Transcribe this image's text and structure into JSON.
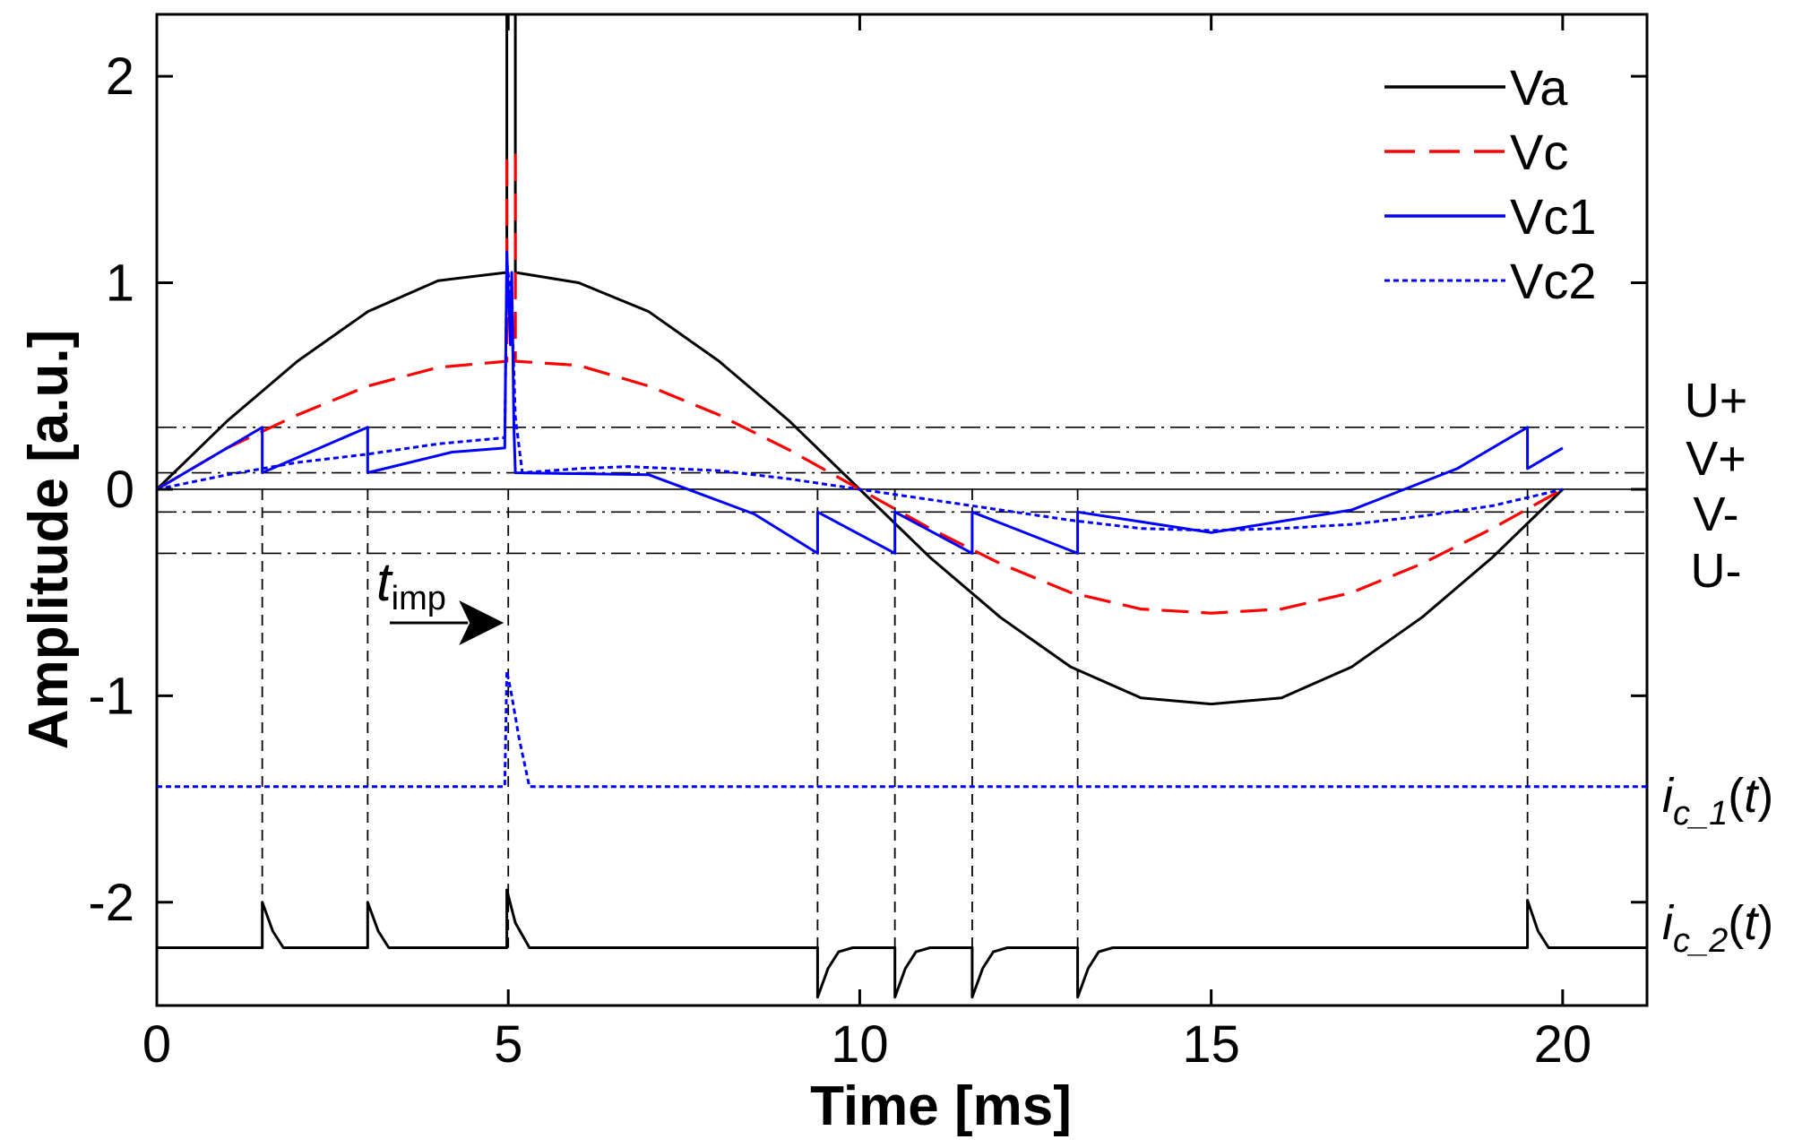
{
  "chart_data": {
    "type": "line",
    "title": "",
    "xlabel": "Time [ms]",
    "ylabel": "Amplitude [a.u.]",
    "xlim": [
      0,
      21.2
    ],
    "ylim": [
      -2.5,
      2.3
    ],
    "xticks": [
      0,
      5,
      10,
      15,
      20
    ],
    "xtick_labels": [
      "0",
      "5",
      "10",
      "15",
      "20"
    ],
    "yticks": [
      -2,
      -1,
      0,
      1,
      2
    ],
    "ytick_labels": [
      "-2",
      "-1",
      "0",
      "1",
      "2"
    ],
    "grid": false,
    "legend_position": "top-right",
    "thresholds": [
      {
        "name": "U+",
        "value": 0.3,
        "style": "dashdot"
      },
      {
        "name": "V+",
        "value": 0.08,
        "style": "dashdot"
      },
      {
        "name": "V-",
        "value": -0.11,
        "style": "dashdot"
      },
      {
        "name": "U-",
        "value": -0.31,
        "style": "dashdot"
      }
    ],
    "current_labels": {
      "ic1": {
        "prefix": "i",
        "sub": "c_1",
        "suffix": "(",
        "t": "t",
        "close": ")",
        "baseline": -1.44
      },
      "ic2": {
        "prefix": "i",
        "sub": "c_2",
        "suffix": "(",
        "t": "t",
        "close": ")",
        "baseline": -2.22
      }
    },
    "annotation": {
      "text": "t",
      "sub": "imp",
      "x": 5.0
    },
    "event_times": [
      1.5,
      3.0,
      5.0,
      9.4,
      10.5,
      11.6,
      13.1,
      19.5
    ],
    "series": [
      {
        "name": "Va",
        "color": "#000000",
        "style": "solid",
        "points": [
          [
            0,
            0
          ],
          [
            1,
            0.33
          ],
          [
            2,
            0.62
          ],
          [
            3,
            0.86
          ],
          [
            4,
            1.01
          ],
          [
            4.98,
            1.05
          ],
          [
            4.98,
            2.3
          ],
          [
            5.1,
            2.3
          ],
          [
            5.1,
            1.05
          ],
          [
            6,
            1.0
          ],
          [
            7,
            0.86
          ],
          [
            8,
            0.62
          ],
          [
            9,
            0.33
          ],
          [
            10,
            0
          ],
          [
            11,
            -0.33
          ],
          [
            12,
            -0.62
          ],
          [
            13,
            -0.86
          ],
          [
            14,
            -1.01
          ],
          [
            15,
            -1.04
          ],
          [
            16,
            -1.01
          ],
          [
            17,
            -0.86
          ],
          [
            18,
            -0.62
          ],
          [
            19,
            -0.33
          ],
          [
            20,
            0
          ]
        ]
      },
      {
        "name": "Vc",
        "color": "#ff0000",
        "style": "dashed",
        "points": [
          [
            0,
            0
          ],
          [
            1,
            0.2
          ],
          [
            2,
            0.36
          ],
          [
            3,
            0.5
          ],
          [
            4,
            0.59
          ],
          [
            4.98,
            0.62
          ],
          [
            4.98,
            1.62
          ],
          [
            5.1,
            1.62
          ],
          [
            5.1,
            0.62
          ],
          [
            6,
            0.6
          ],
          [
            7,
            0.5
          ],
          [
            8,
            0.36
          ],
          [
            9,
            0.19
          ],
          [
            10,
            0
          ],
          [
            11,
            -0.19
          ],
          [
            12,
            -0.36
          ],
          [
            13,
            -0.5
          ],
          [
            14,
            -0.58
          ],
          [
            15,
            -0.6
          ],
          [
            16,
            -0.58
          ],
          [
            17,
            -0.5
          ],
          [
            18,
            -0.36
          ],
          [
            19,
            -0.19
          ],
          [
            20,
            0
          ]
        ]
      },
      {
        "name": "Vc1",
        "color": "#0000ff",
        "style": "solid",
        "points": [
          [
            0,
            0
          ],
          [
            1.5,
            0.3
          ],
          [
            1.5,
            0.08
          ],
          [
            3.0,
            0.3
          ],
          [
            3.0,
            0.08
          ],
          [
            4.2,
            0.18
          ],
          [
            4.95,
            0.2
          ],
          [
            4.98,
            1.15
          ],
          [
            5.03,
            0.7
          ],
          [
            5.05,
            1.05
          ],
          [
            5.08,
            0.3
          ],
          [
            5.1,
            0.08
          ],
          [
            7.0,
            0.07
          ],
          [
            8.5,
            -0.12
          ],
          [
            9.4,
            -0.31
          ],
          [
            9.4,
            -0.11
          ],
          [
            10.5,
            -0.31
          ],
          [
            10.5,
            -0.11
          ],
          [
            11.6,
            -0.31
          ],
          [
            11.6,
            -0.11
          ],
          [
            13.1,
            -0.31
          ],
          [
            13.1,
            -0.11
          ],
          [
            15.0,
            -0.21
          ],
          [
            17.0,
            -0.1
          ],
          [
            18.5,
            0.1
          ],
          [
            19.5,
            0.3
          ],
          [
            19.5,
            0.1
          ],
          [
            20.0,
            0.2
          ]
        ]
      },
      {
        "name": "Vc2",
        "color": "#0000ff",
        "style": "dotted",
        "points": [
          [
            0,
            0
          ],
          [
            1,
            0.07
          ],
          [
            2,
            0.13
          ],
          [
            3,
            0.17
          ],
          [
            4,
            0.22
          ],
          [
            4.95,
            0.25
          ],
          [
            4.98,
            1.1
          ],
          [
            5.05,
            0.9
          ],
          [
            5.1,
            0.35
          ],
          [
            5.2,
            0.08
          ],
          [
            6,
            0.1
          ],
          [
            6.7,
            0.11
          ],
          [
            8,
            0.09
          ],
          [
            9,
            0.05
          ],
          [
            10,
            0
          ],
          [
            11,
            -0.05
          ],
          [
            12,
            -0.1
          ],
          [
            13,
            -0.15
          ],
          [
            14,
            -0.19
          ],
          [
            15,
            -0.2
          ],
          [
            16,
            -0.19
          ],
          [
            17,
            -0.17
          ],
          [
            18,
            -0.13
          ],
          [
            19,
            -0.08
          ],
          [
            20,
            0
          ]
        ]
      },
      {
        "name": "ic1",
        "color": "#0000ff",
        "style": "dotted",
        "in_legend": false,
        "points": [
          [
            0,
            -1.44
          ],
          [
            4.95,
            -1.44
          ],
          [
            4.98,
            -0.88
          ],
          [
            5.05,
            -1.0
          ],
          [
            5.15,
            -1.2
          ],
          [
            5.3,
            -1.44
          ],
          [
            21.2,
            -1.44
          ]
        ]
      },
      {
        "name": "ic2",
        "color": "#000000",
        "style": "solid",
        "in_legend": false,
        "points": [
          [
            0,
            -2.22
          ],
          [
            1.5,
            -2.22
          ],
          [
            1.5,
            -2.0
          ],
          [
            1.65,
            -2.14
          ],
          [
            1.8,
            -2.22
          ],
          [
            3.0,
            -2.22
          ],
          [
            3.0,
            -2.0
          ],
          [
            3.15,
            -2.14
          ],
          [
            3.3,
            -2.22
          ],
          [
            4.98,
            -2.22
          ],
          [
            4.98,
            -1.94
          ],
          [
            5.1,
            -2.1
          ],
          [
            5.3,
            -2.22
          ],
          [
            9.4,
            -2.22
          ],
          [
            9.4,
            -2.46
          ],
          [
            9.55,
            -2.32
          ],
          [
            9.7,
            -2.24
          ],
          [
            9.9,
            -2.22
          ],
          [
            10.5,
            -2.22
          ],
          [
            10.5,
            -2.46
          ],
          [
            10.65,
            -2.32
          ],
          [
            10.8,
            -2.24
          ],
          [
            11.0,
            -2.22
          ],
          [
            11.6,
            -2.22
          ],
          [
            11.6,
            -2.46
          ],
          [
            11.75,
            -2.32
          ],
          [
            11.9,
            -2.24
          ],
          [
            12.1,
            -2.22
          ],
          [
            13.1,
            -2.22
          ],
          [
            13.1,
            -2.46
          ],
          [
            13.25,
            -2.32
          ],
          [
            13.4,
            -2.24
          ],
          [
            13.6,
            -2.22
          ],
          [
            19.5,
            -2.22
          ],
          [
            19.5,
            -1.99
          ],
          [
            19.65,
            -2.14
          ],
          [
            19.8,
            -2.22
          ],
          [
            21.2,
            -2.22
          ]
        ]
      }
    ]
  }
}
